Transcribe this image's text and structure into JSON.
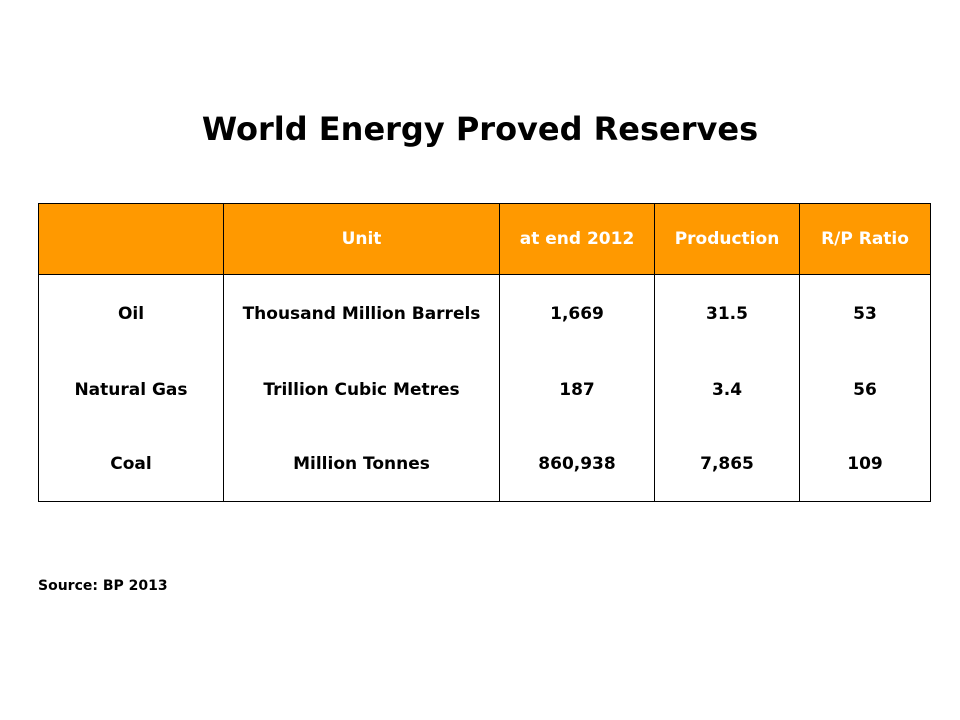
{
  "title": "World Energy Proved Reserves",
  "table": {
    "header_color": "#FF9900",
    "headers": [
      "",
      "Unit",
      "at end 2012",
      "Production",
      "R/P Ratio"
    ],
    "rows": [
      {
        "fuel": "Oil",
        "unit": "Thousand Million Barrels",
        "reserves": "1,669",
        "production": "31.5",
        "rp_ratio": "53"
      },
      {
        "fuel": "Natural Gas",
        "unit": "Trillion Cubic Metres",
        "reserves": "187",
        "production": "3.4",
        "rp_ratio": "56"
      },
      {
        "fuel": "Coal",
        "unit": "Million Tonnes",
        "reserves": "860,938",
        "production": "7,865",
        "rp_ratio": "109"
      }
    ]
  },
  "source": "Source: BP 2013"
}
